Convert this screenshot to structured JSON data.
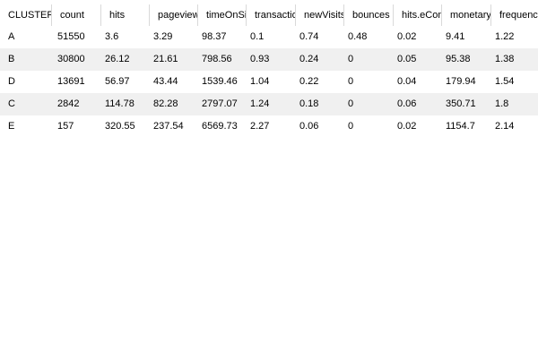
{
  "table": {
    "columns": [
      "CLUSTERS",
      "count",
      "hits",
      "pageviews",
      "timeOnSite",
      "transactions",
      "newVisits",
      "bounces",
      "hits.eCom",
      "monetary",
      "frequency"
    ],
    "rows": [
      [
        "A",
        "51550",
        "3.6",
        "3.29",
        "98.37",
        "0.1",
        "0.74",
        "0.48",
        "0.02",
        "9.41",
        "1.22"
      ],
      [
        "B",
        "30800",
        "26.12",
        "21.61",
        "798.56",
        "0.93",
        "0.24",
        "0",
        "0.05",
        "95.38",
        "1.38"
      ],
      [
        "D",
        "13691",
        "56.97",
        "43.44",
        "1539.46",
        "1.04",
        "0.22",
        "0",
        "0.04",
        "179.94",
        "1.54"
      ],
      [
        "C",
        "2842",
        "114.78",
        "82.28",
        "2797.07",
        "1.24",
        "0.18",
        "0",
        "0.06",
        "350.71",
        "1.8"
      ],
      [
        "E",
        "157",
        "320.55",
        "237.54",
        "6569.73",
        "2.27",
        "0.06",
        "0",
        "0.02",
        "1154.7",
        "2.14"
      ]
    ]
  }
}
